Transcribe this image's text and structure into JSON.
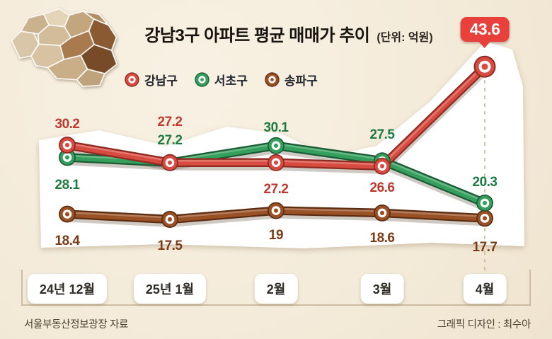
{
  "title": "강남3구 아파트 평균 매매가 추이",
  "unit_note": "(단위: 억원)",
  "chart_data": {
    "type": "line",
    "categories": [
      "24년 12월",
      "25년 1월",
      "2월",
      "3월",
      "4월"
    ],
    "series": [
      {
        "name": "강남구",
        "color": "#d84b40",
        "dark": "#8e2b22",
        "label_color": "#bf3a2e",
        "values": [
          30.2,
          27.2,
          27.2,
          26.6,
          43.6
        ]
      },
      {
        "name": "서초구",
        "color": "#35a05e",
        "dark": "#1c5c34",
        "label_color": "#1e7a43",
        "values": [
          28.1,
          27.2,
          30.1,
          27.5,
          20.3
        ]
      },
      {
        "name": "송파구",
        "color": "#9a5126",
        "dark": "#5d2e12",
        "label_color": "#7c3c15",
        "values": [
          18.4,
          17.5,
          19,
          18.6,
          17.7
        ]
      }
    ],
    "highlight": {
      "series": "강남구",
      "category": "4월",
      "value": 43.6,
      "badge_color": "#e8403a"
    },
    "ylim": [
      15,
      46
    ],
    "legend_position": "top",
    "grid": "off"
  },
  "footer": {
    "source": "서울부동산정보광장 자료",
    "credit": "그래픽 디자인 : 최수아"
  }
}
